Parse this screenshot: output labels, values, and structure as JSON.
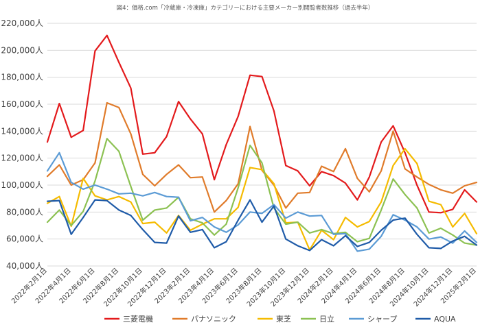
{
  "chart_data": {
    "type": "line",
    "title": "図4：価格.com「冷蔵庫・冷凍庫」カテゴリーにおける主要メーカー別閲覧者数推移（過去半年）",
    "xlabel": "",
    "ylabel": "",
    "ylim": [
      40000,
      220000
    ],
    "ytick_step": 20000,
    "ytick_labels": [
      "40,000人",
      "60,000人",
      "80,000人",
      "100,000人",
      "120,000人",
      "140,000人",
      "160,000人",
      "180,000人",
      "200,000人",
      "220,000人"
    ],
    "grid": true,
    "legend_position": "bottom",
    "categories": [
      "2022年2月1日",
      "2022年3月1日",
      "2022年4月1日",
      "2022年5月1日",
      "2022年6月1日",
      "2022年7月1日",
      "2022年8月1日",
      "2022年9月1日",
      "2022年10月1日",
      "2022年11月1日",
      "2022年12月1日",
      "2023年1月1日",
      "2023年2月1日",
      "2023年3月1日",
      "2023年4月1日",
      "2023年5月1日",
      "2023年6月1日",
      "2023年7月1日",
      "2023年8月1日",
      "2023年9月1日",
      "2023年10月1日",
      "2023年11月1日",
      "2023年12月1日",
      "2024年1月1日",
      "2024年2月1日",
      "2024年3月1日",
      "2024年4月1日",
      "2024年5月1日",
      "2024年6月1日",
      "2024年7月1日",
      "2024年8月1日",
      "2024年9月1日",
      "2024年10月1日",
      "2024年11月1日",
      "2024年12月1日",
      "2025年1月1日",
      "2025年2月1日"
    ],
    "tick_labels": [
      "2022年2月1日",
      "2022年4月1日",
      "2022年6月1日",
      "2022年8月1日",
      "2022年10月1日",
      "2022年12月1日",
      "2023年2月1日",
      "2023年4月1日",
      "2023年6月1日",
      "2023年8月1日",
      "2023年10月1日",
      "2023年12月1日",
      "2024年2月1日",
      "2024年4月1日",
      "2024年6月1日",
      "2024年8月1日",
      "2024年10月1日",
      "2024年12月1日",
      "2025年2月1日"
    ],
    "series": [
      {
        "name": "三菱電機",
        "color": "#e31a1c",
        "values": [
          132000,
          160500,
          135500,
          140500,
          199500,
          211000,
          191000,
          172000,
          123000,
          124000,
          136000,
          162000,
          149000,
          138000,
          104000,
          130000,
          151000,
          181500,
          180500,
          155000,
          114500,
          110500,
          99500,
          110000,
          107000,
          101500,
          89000,
          106000,
          132000,
          144000,
          124000,
          100000,
          80000,
          79500,
          82000,
          96500,
          87500
        ]
      },
      {
        "name": "パナソニック",
        "color": "#e07b2a",
        "values": [
          106500,
          115000,
          100000,
          104000,
          116500,
          161000,
          157500,
          138000,
          108000,
          99500,
          108000,
          115000,
          105500,
          106000,
          80000,
          88500,
          101000,
          143500,
          111000,
          100000,
          83000,
          94000,
          94500,
          114000,
          110000,
          127000,
          105000,
          95000,
          110500,
          140000,
          112000,
          106000,
          100500,
          96500,
          94000,
          99500,
          102000
        ]
      },
      {
        "name": "東芝",
        "color": "#f5bb00",
        "values": [
          86500,
          91500,
          69500,
          105000,
          92000,
          89000,
          91500,
          87500,
          71500,
          72500,
          64500,
          77500,
          66500,
          71000,
          75000,
          75000,
          83500,
          113000,
          111500,
          101000,
          72000,
          72500,
          52000,
          66500,
          59500,
          76000,
          69000,
          73000,
          87500,
          114500,
          127000,
          116000,
          88000,
          85500,
          69000,
          79000,
          64000
        ]
      },
      {
        "name": "日立",
        "color": "#8cc152",
        "values": [
          72500,
          81500,
          70000,
          80500,
          103000,
          134500,
          125000,
          99000,
          74000,
          81500,
          83000,
          91000,
          75000,
          72000,
          63000,
          71000,
          98000,
          129500,
          116500,
          83000,
          71000,
          72500,
          64500,
          67000,
          64000,
          65000,
          58000,
          60500,
          81500,
          104500,
          93000,
          83000,
          64500,
          68000,
          63000,
          57000,
          55500
        ]
      },
      {
        "name": "シャープ",
        "color": "#5b9bd5",
        "values": [
          110500,
          124000,
          102000,
          97000,
          100000,
          97000,
          93500,
          94000,
          92000,
          94500,
          91500,
          91000,
          73500,
          76000,
          69000,
          65000,
          70500,
          80000,
          79000,
          85500,
          75500,
          80000,
          77000,
          77500,
          63500,
          64000,
          51000,
          52500,
          62000,
          78000,
          74000,
          69000,
          60000,
          61500,
          57000,
          66000,
          57500
        ]
      },
      {
        "name": "AQUA",
        "color": "#1f5ba8",
        "values": [
          88000,
          88500,
          63500,
          76000,
          89000,
          88500,
          81500,
          77500,
          67000,
          57500,
          57000,
          77000,
          65000,
          67000,
          53500,
          58000,
          74000,
          89000,
          72500,
          84500,
          60000,
          55000,
          51500,
          59500,
          55000,
          62500,
          54500,
          57500,
          66500,
          74000,
          75500,
          63500,
          53500,
          53000,
          58500,
          62000,
          55500
        ]
      }
    ]
  }
}
